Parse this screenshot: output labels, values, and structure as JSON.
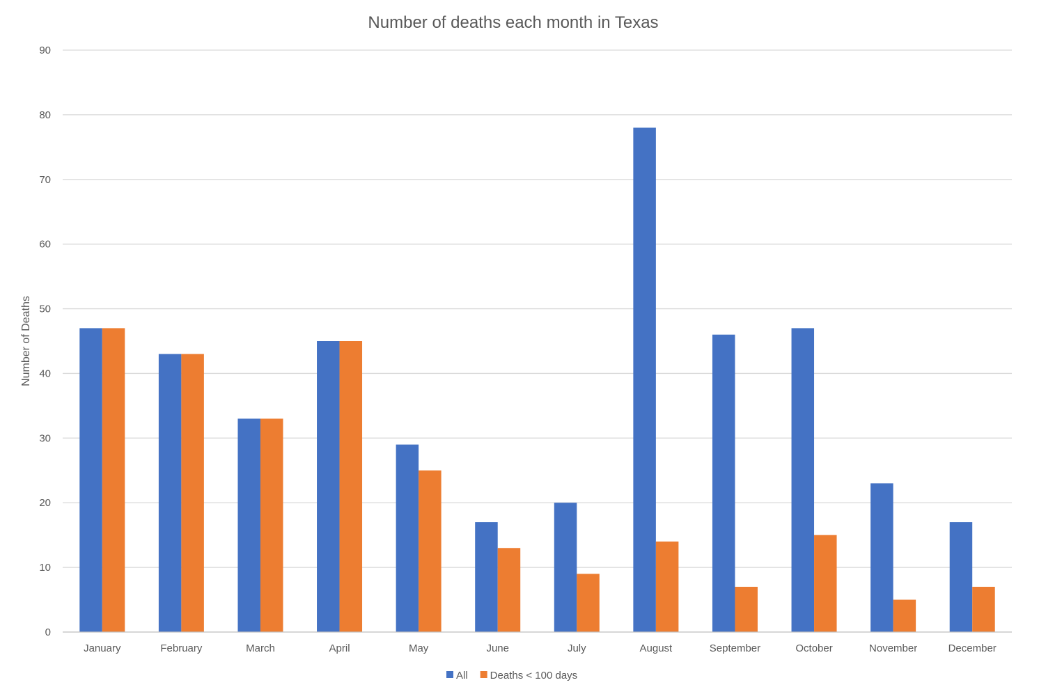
{
  "chart_data": {
    "type": "bar",
    "title": "Number of deaths each month in Texas",
    "xlabel": "",
    "ylabel": "Number of Deaths",
    "ylim": [
      0,
      90
    ],
    "ytick_step": 10,
    "grid": true,
    "legend_position": "bottom",
    "categories": [
      "January",
      "February",
      "March",
      "April",
      "May",
      "June",
      "July",
      "August",
      "September",
      "October",
      "November",
      "December"
    ],
    "series": [
      {
        "name": "All",
        "color": "#4472C4",
        "values": [
          47,
          43,
          33,
          45,
          29,
          17,
          20,
          78,
          46,
          47,
          23,
          17
        ]
      },
      {
        "name": "Deaths < 100 days",
        "color": "#ED7D31",
        "values": [
          47,
          43,
          33,
          45,
          25,
          13,
          9,
          14,
          7,
          15,
          5,
          7
        ]
      }
    ]
  }
}
